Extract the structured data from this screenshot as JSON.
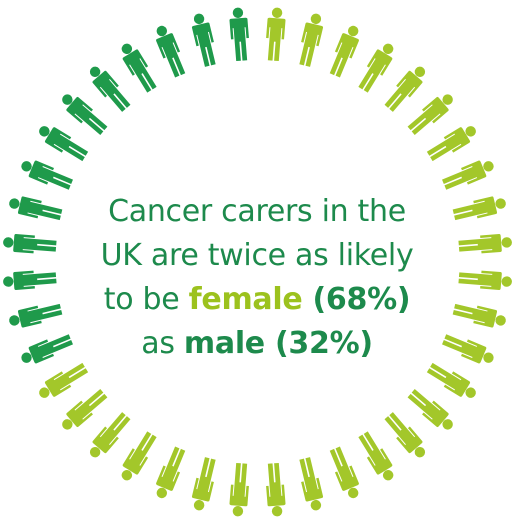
{
  "caption": {
    "line1": "Cancer carers in the",
    "line2": "UK are twice as likely",
    "line3_a": "to be ",
    "line3_female": "female",
    "line3_pct": " (68%)",
    "line4_a": "as ",
    "line4_male": "male",
    "line4_pct": " (32%)"
  },
  "ring": {
    "total_figures": 40,
    "male_count": 13,
    "female_count": 27,
    "male_color": "#1f9a4b",
    "female_color": "#a3c72a",
    "icon": "person-icon"
  }
}
